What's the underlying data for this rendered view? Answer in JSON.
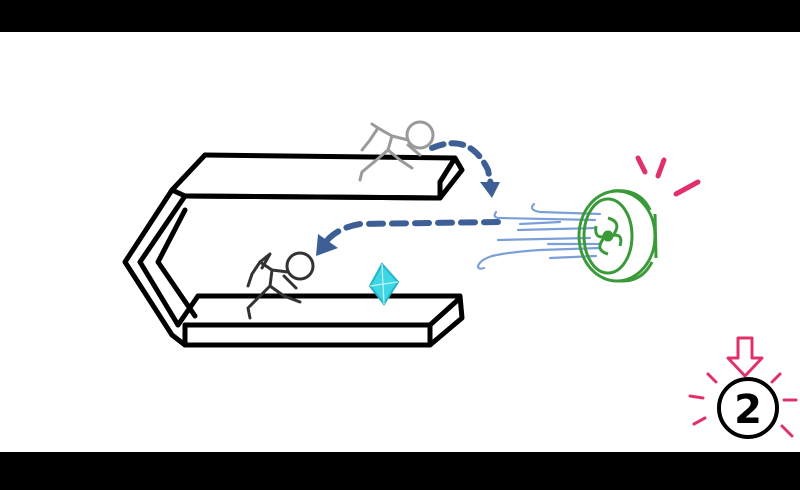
{
  "scene": {
    "step_number": "2",
    "colors": {
      "ink": "#000000",
      "ghost": "#9a9a9a",
      "arrow": "#3d5f95",
      "wind": "#7c9fd8",
      "fan": "#3a9a3a",
      "gem": "#3fd6e6",
      "alert": "#e0326a"
    },
    "icons": [
      "u-shaped-track",
      "runner-ghost-icon",
      "runner-icon",
      "fan-icon",
      "wind-gust-icon",
      "crystal-gem-icon",
      "dashed-jump-arrow",
      "dashed-blow-arrow",
      "step-marker-icon",
      "down-arrow-icon"
    ]
  }
}
